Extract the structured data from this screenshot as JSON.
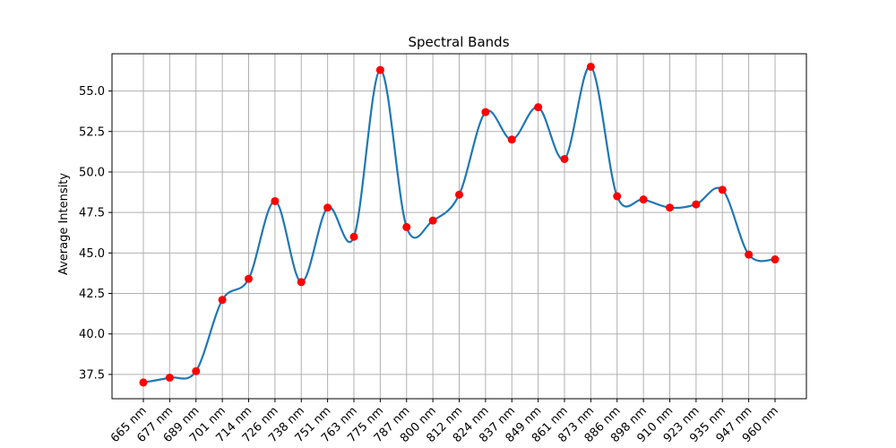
{
  "chart_data": {
    "type": "line",
    "title": "Spectral Bands",
    "xlabel": "",
    "ylabel": "Average Intensity",
    "categories": [
      "665 nm",
      "677 nm",
      "689 nm",
      "701 nm",
      "714 nm",
      "726 nm",
      "738 nm",
      "751 nm",
      "763 nm",
      "775 nm",
      "787 nm",
      "800 nm",
      "812 nm",
      "824 nm",
      "837 nm",
      "849 nm",
      "861 nm",
      "873 nm",
      "886 nm",
      "898 nm",
      "910 nm",
      "923 nm",
      "935 nm",
      "947 nm",
      "960 nm"
    ],
    "series": [
      {
        "values": [
          37.0,
          37.3,
          37.7,
          42.1,
          43.4,
          48.2,
          43.2,
          47.8,
          46.0,
          56.3,
          46.6,
          47.0,
          48.6,
          53.7,
          52.0,
          54.0,
          50.8,
          56.5,
          48.5,
          48.3,
          47.8,
          48.0,
          48.9,
          44.9,
          44.6
        ]
      }
    ],
    "ylim": [
      36.0,
      57.3
    ],
    "yticks": [
      "37.5",
      "40.0",
      "42.5",
      "45.0",
      "47.5",
      "50.0",
      "52.5",
      "55.0"
    ],
    "grid": true,
    "colors": {
      "line": "#1f77b4",
      "marker": "#ff0000",
      "grid": "#b0b0b0"
    }
  }
}
